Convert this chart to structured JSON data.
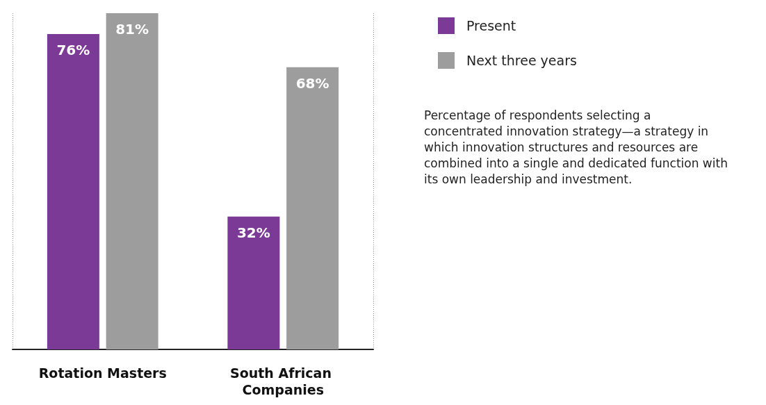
{
  "chart_data": {
    "type": "bar",
    "categories": [
      "Rotation Masters",
      "South African Companies"
    ],
    "series": [
      {
        "name": "Present",
        "color": "#7b3a96",
        "values": [
          76,
          32
        ],
        "value_labels": [
          "76%",
          "32%"
        ]
      },
      {
        "name": "Next three years",
        "color": "#9d9d9d",
        "values": [
          81,
          68
        ],
        "value_labels": [
          "81%",
          "68%"
        ]
      }
    ],
    "legend": "top right",
    "grid": "x",
    "annotations": [
      "Percentage of respondents selecting a concentrated innovation strategy—a strategy in which innovation structures and resources are combined into a single and dedicated function with its own leadership and investment."
    ]
  }
}
